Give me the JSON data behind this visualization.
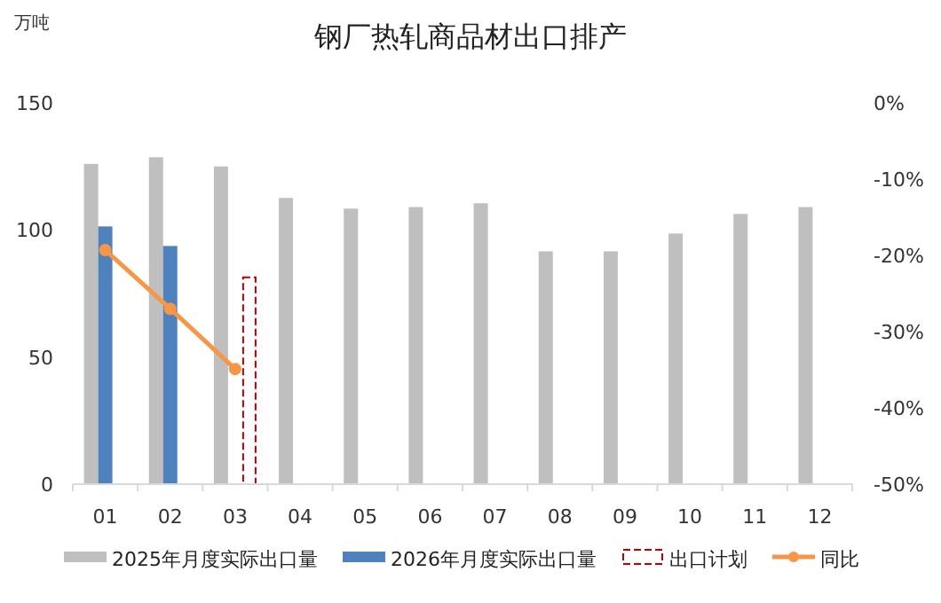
{
  "chart_data": {
    "type": "bar",
    "title": "钢厂热轧商品材出口排产",
    "ylabel": "万吨",
    "categories": [
      "01",
      "02",
      "03",
      "04",
      "05",
      "06",
      "07",
      "08",
      "09",
      "10",
      "11",
      "12"
    ],
    "series": [
      {
        "name": "2025年月度实际出口量",
        "color": "#bfbfbf",
        "values": [
          126,
          128.6,
          125,
          112.6,
          108.4,
          109,
          110.5,
          91.6,
          91.6,
          98.6,
          106.3,
          109
        ]
      },
      {
        "name": "2026年月度实际出口量",
        "color": "#4f81bd",
        "values": [
          101.4,
          93.7,
          null,
          null,
          null,
          null,
          null,
          null,
          null,
          null,
          null,
          null
        ]
      },
      {
        "name": "出口计划",
        "color": "#c00000",
        "line_style": "dashed",
        "values": [
          null,
          null,
          81.4,
          null,
          null,
          null,
          null,
          null,
          null,
          null,
          null,
          null
        ]
      },
      {
        "name": "同比",
        "type": "line",
        "axis": "y2",
        "color": "#f79646",
        "marker": "circle",
        "values": [
          -19.3,
          -27,
          -34.9,
          null,
          null,
          null,
          null,
          null,
          null,
          null,
          null,
          null
        ]
      }
    ],
    "ylim": [
      0,
      150
    ],
    "yticks": [
      0,
      50,
      100,
      150
    ],
    "y2lim": [
      -50,
      0
    ],
    "y2ticks": [
      {
        "value": 0,
        "label": "0%"
      },
      {
        "value": -10,
        "label": "-10%"
      },
      {
        "value": -20,
        "label": "-20%"
      },
      {
        "value": -30,
        "label": "-30%"
      },
      {
        "value": -40,
        "label": "-40%"
      },
      {
        "value": -50,
        "label": "-50%"
      }
    ],
    "grid": false,
    "legend": "bottom"
  }
}
